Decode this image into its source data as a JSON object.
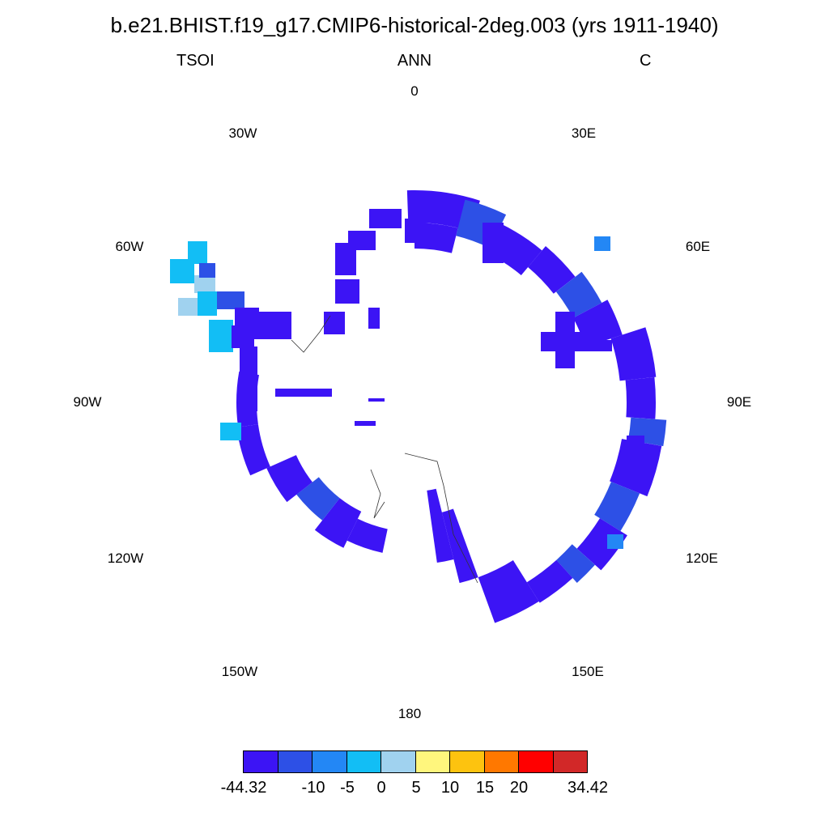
{
  "title": "b.e21.BHIST.f19_g17.CMIP6-historical-2deg.003 (yrs 1911-1940)",
  "subtitle": {
    "left": "TSOI",
    "center": "ANN",
    "right": "C"
  },
  "longitude_labels": [
    "0",
    "30E",
    "60E",
    "90E",
    "120E",
    "150E",
    "180",
    "150W",
    "120W",
    "90W",
    "60W",
    "30W"
  ],
  "projection": "south-polar-stereographic",
  "colorbar": {
    "colors": [
      "#3c14f5",
      "#2d50e6",
      "#2387f5",
      "#12bef5",
      "#a0d2ef",
      "#fff67d",
      "#fdc30f",
      "#ff7800",
      "#ff0000",
      "#d22828"
    ],
    "labels": [
      "-44.32",
      "-10",
      "-5",
      "0",
      "5",
      "10",
      "15",
      "20",
      "34.42"
    ]
  },
  "chart_data": {
    "type": "heatmap",
    "variable": "TSOI",
    "season": "ANN",
    "units": "C",
    "value_range": [
      -44.32,
      34.42
    ],
    "levels": [
      -10,
      -5,
      0,
      5,
      10,
      15,
      20
    ],
    "dominant_value_class": "< -10 (coastal Antarctic land cells)",
    "warmer_regions": "Antarctic Peninsula (0 to 5 C class, -5 to 0 C class)"
  }
}
